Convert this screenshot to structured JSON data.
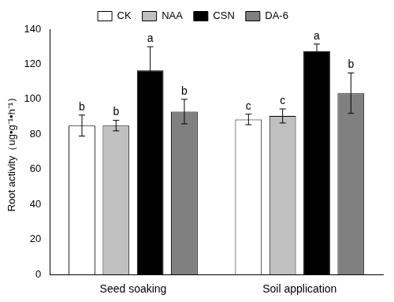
{
  "chart_data": {
    "type": "bar",
    "categories": [
      "Seed soaking",
      "Soil application"
    ],
    "series": [
      {
        "name": "CK",
        "color": "#ffffff",
        "values": [
          85,
          88.5
        ],
        "errors": [
          6,
          3
        ],
        "letters": [
          "b",
          "c"
        ]
      },
      {
        "name": "NAA",
        "color": "#c0c0c0",
        "values": [
          85,
          90.5
        ],
        "errors": [
          3,
          4
        ],
        "letters": [
          "b",
          "c"
        ]
      },
      {
        "name": "CSN",
        "color": "#000000",
        "values": [
          116.5,
          127.5
        ],
        "errors": [
          13.5,
          4
        ],
        "letters": [
          "a",
          "a"
        ]
      },
      {
        "name": "DA-6",
        "color": "#808080",
        "values": [
          93,
          103.5
        ],
        "errors": [
          7,
          11.5
        ],
        "letters": [
          "b",
          "b"
        ]
      }
    ],
    "y_label": "Root activity（ug•g⁻¹•h⁻¹）",
    "ylim": [
      0,
      140
    ],
    "yticks": [
      0,
      20,
      40,
      60,
      80,
      100,
      120,
      140
    ],
    "grid": false,
    "legend": "top"
  }
}
